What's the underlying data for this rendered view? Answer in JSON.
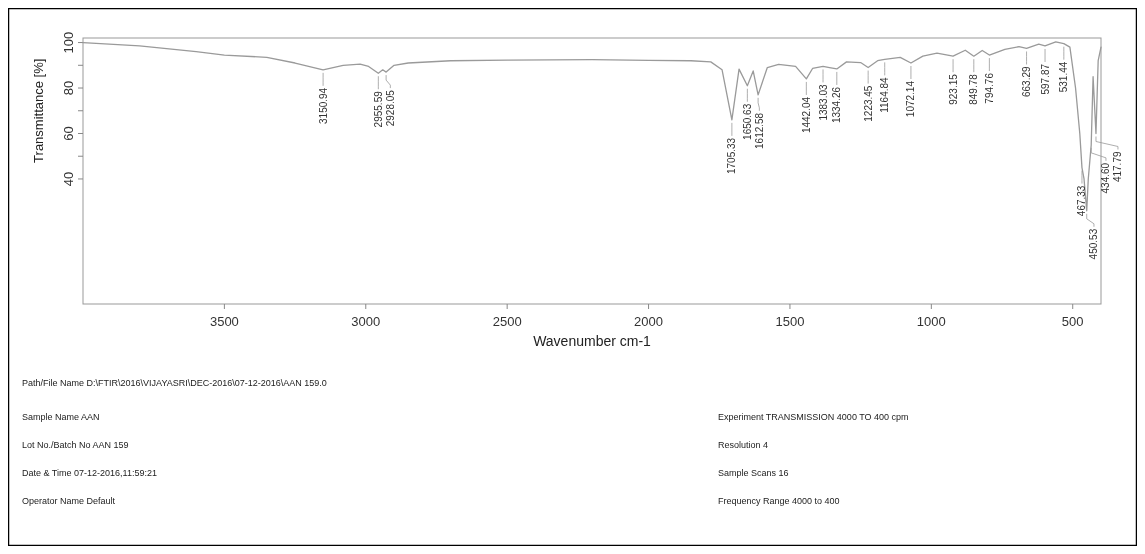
{
  "chart_data": {
    "type": "line",
    "xlabel": "Wavenumber cm-1",
    "ylabel": "Transmittance [%]",
    "x": [
      4000,
      3800,
      3600,
      3500,
      3350,
      3250,
      3150.94,
      3080,
      3020,
      2990,
      2955.59,
      2940,
      2928.05,
      2900,
      2850,
      2700,
      2500,
      2200,
      2000,
      1850,
      1780,
      1740,
      1705.33,
      1680,
      1650.63,
      1630,
      1612.58,
      1580,
      1540,
      1480,
      1442.04,
      1420,
      1383.03,
      1360,
      1334.26,
      1300,
      1250,
      1223.45,
      1190,
      1164.84,
      1110,
      1072.14,
      1030,
      980,
      923.15,
      880,
      849.78,
      820,
      794.76,
      740,
      690,
      663.29,
      620,
      597.87,
      560,
      531.44,
      510,
      490,
      475,
      467.33,
      460,
      450.53,
      445,
      434.6,
      428,
      417.79,
      410,
      400
    ],
    "series": [
      {
        "color": "#9a9a9a",
        "values": [
          100,
          98.5,
          96,
          94.5,
          93.5,
          91,
          88,
          90,
          90.5,
          89.5,
          86.5,
          88,
          87,
          90,
          91,
          92,
          92.3,
          92.5,
          92.2,
          92,
          91.5,
          88,
          66,
          88.3,
          81,
          87.5,
          77,
          89,
          90.4,
          89.5,
          84,
          88.6,
          89.5,
          89,
          88.4,
          91.5,
          91.2,
          89,
          92,
          92.6,
          93.5,
          91,
          94,
          95.3,
          94,
          96.6,
          94,
          96.5,
          94.5,
          97,
          98.2,
          97.4,
          99.3,
          98.5,
          100.3,
          99.5,
          98,
          80,
          60,
          45,
          40,
          26,
          40,
          55,
          85,
          60,
          92,
          98
        ]
      }
    ],
    "xlim": [
      4000,
      400
    ],
    "xticks": [
      3500,
      3000,
      2500,
      2000,
      1500,
      1000,
      500
    ],
    "ylim": [
      -15,
      102
    ],
    "yticks": [
      100,
      {
        "value": 90,
        "label": null
      },
      80,
      {
        "value": 70,
        "label": null
      },
      60,
      {
        "value": 50,
        "label": null
      },
      40
    ],
    "annotations": [
      {
        "text": "3150.94",
        "x": 3150.94,
        "y": 88
      },
      {
        "text": "2955.59",
        "x": 2955.59,
        "y": 86.5
      },
      {
        "text": "2928.05",
        "x": 2928.05,
        "y": 87
      },
      {
        "text": "1705.33",
        "x": 1705.33,
        "y": 66
      },
      {
        "text": "1650.63",
        "x": 1650.63,
        "y": 81
      },
      {
        "text": "1612.58",
        "x": 1612.58,
        "y": 77
      },
      {
        "text": "1442.04",
        "x": 1442.04,
        "y": 84
      },
      {
        "text": "1383.03",
        "x": 1383.03,
        "y": 89.5
      },
      {
        "text": "1334.26",
        "x": 1334.26,
        "y": 88.4
      },
      {
        "text": "1223.45",
        "x": 1223.45,
        "y": 89
      },
      {
        "text": "1164.84",
        "x": 1164.84,
        "y": 92.6
      },
      {
        "text": "1072.14",
        "x": 1072.14,
        "y": 91
      },
      {
        "text": "923.15",
        "x": 923.15,
        "y": 94
      },
      {
        "text": "849.78",
        "x": 849.78,
        "y": 94
      },
      {
        "text": "794.76",
        "x": 794.76,
        "y": 94.5
      },
      {
        "text": "663.29",
        "x": 663.29,
        "y": 97.4
      },
      {
        "text": "597.87",
        "x": 597.87,
        "y": 98.5
      },
      {
        "text": "531.44",
        "x": 531.44,
        "y": 99.5
      },
      {
        "text": "467.33",
        "x": 467.33,
        "y": 45
      },
      {
        "text": "450.53",
        "x": 450.53,
        "y": 26
      },
      {
        "text": "434.60",
        "x": 434.6,
        "y": 55
      },
      {
        "text": "417.79",
        "x": 417.79,
        "y": 60
      },
      "Path/File Name D:\\FTIR\\2016\\VIJAYASRI\\DEC-2016\\07-12-2016\\AAN 159.0",
      "Sample Name AAN",
      "Experiment TRANSMISSION 4000 TO 400 cpm",
      "Lot No./Batch No AAN 159",
      "Resolution 4",
      "Date & Time 07-12-2016,11:59:21",
      "Sample Scans 16",
      "Operator Name Default",
      "Frequency Range 4000 to 400"
    ]
  }
}
